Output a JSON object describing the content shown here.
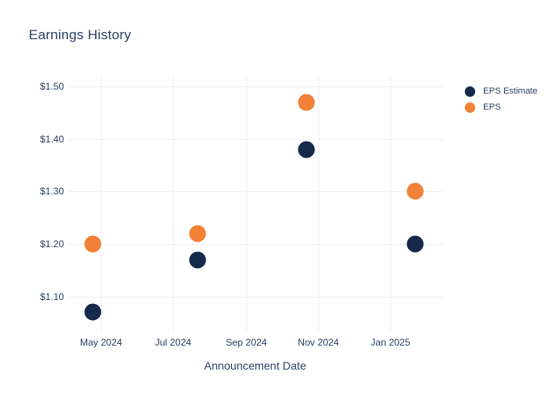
{
  "chart_data": {
    "type": "scatter",
    "title": "Earnings History",
    "xlabel": "Announcement Date",
    "ylabel": "",
    "grid": true,
    "legend_position": "right",
    "background_color": "#ffffff",
    "gridline_color": "#eef0f8",
    "text_color": "#2a3f5f",
    "ylim": [
      1.04,
      1.52
    ],
    "x_domain": [
      "2024-04-03",
      "2025-02-14"
    ],
    "y_ticks": [
      {
        "value": 1.1,
        "label": "$1.10"
      },
      {
        "value": 1.2,
        "label": "$1.20"
      },
      {
        "value": 1.3,
        "label": "$1.30"
      },
      {
        "value": 1.4,
        "label": "$1.40"
      },
      {
        "value": 1.5,
        "label": "$1.50"
      }
    ],
    "x_ticks": [
      {
        "date": "2024-05-01",
        "label": "May 2024"
      },
      {
        "date": "2024-07-01",
        "label": "Jul 2024"
      },
      {
        "date": "2024-09-01",
        "label": "Sep 2024"
      },
      {
        "date": "2024-11-01",
        "label": "Nov 2024"
      },
      {
        "date": "2025-01-01",
        "label": "Jan 2025"
      }
    ],
    "series": [
      {
        "name": "EPS Estimate",
        "color": "#15294b",
        "points": [
          {
            "date": "2024-04-24",
            "value": 1.07
          },
          {
            "date": "2024-07-22",
            "value": 1.17
          },
          {
            "date": "2024-10-22",
            "value": 1.38
          },
          {
            "date": "2025-01-22",
            "value": 1.2
          }
        ]
      },
      {
        "name": "EPS",
        "color": "#f08137",
        "points": [
          {
            "date": "2024-04-24",
            "value": 1.2
          },
          {
            "date": "2024-07-22",
            "value": 1.22
          },
          {
            "date": "2024-10-22",
            "value": 1.47
          },
          {
            "date": "2025-01-22",
            "value": 1.3
          }
        ]
      }
    ]
  }
}
